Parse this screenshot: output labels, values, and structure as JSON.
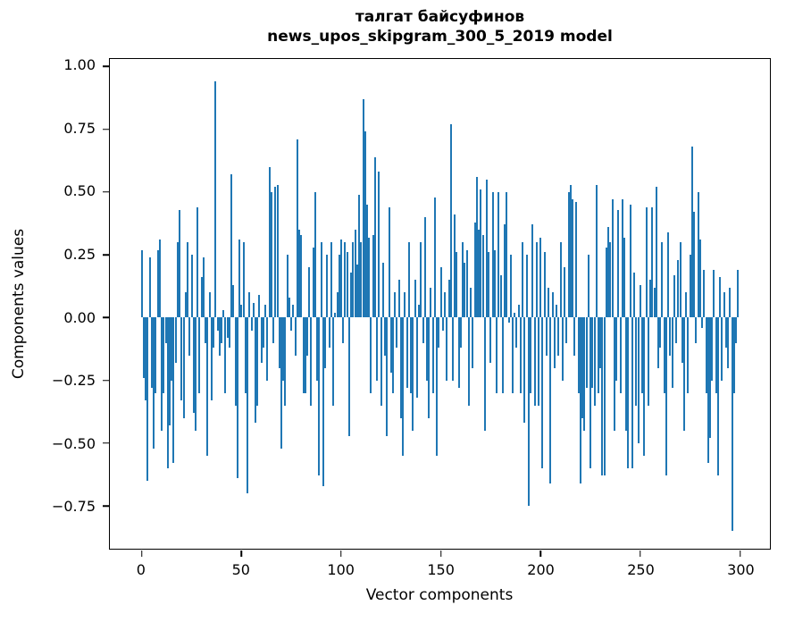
{
  "figure": {
    "title_line1": "талгат байсуфинов",
    "title_line2": "news_upos_skipgram_300_5_2019 model"
  },
  "axes": {
    "xlabel": "Vector components",
    "ylabel": "Components values",
    "x_tick_labels": [
      "0",
      "50",
      "100",
      "150",
      "200",
      "250",
      "300"
    ],
    "y_tick_labels": [
      "1.00",
      "0.75",
      "0.50",
      "0.25",
      "0.00",
      "−0.25",
      "−0.50",
      "−0.75"
    ]
  },
  "chart_data": {
    "type": "bar",
    "title": "талгат байсуфинов\nnews_upos_skipgram_300_5_2019 model",
    "xlabel": "Vector components",
    "ylabel": "Components values",
    "bar_color": "#1f77b4",
    "n_components": 300,
    "xlim": [
      -16,
      315
    ],
    "ylim": [
      -0.92,
      1.03
    ],
    "x_ticks": [
      0,
      50,
      100,
      150,
      200,
      250,
      300
    ],
    "y_ticks": [
      1.0,
      0.75,
      0.5,
      0.25,
      0.0,
      -0.25,
      -0.5,
      -0.75
    ],
    "values": [
      0.27,
      -0.24,
      -0.33,
      -0.65,
      0.24,
      -0.28,
      -0.52,
      -0.3,
      0.27,
      0.31,
      -0.45,
      -0.3,
      -0.1,
      -0.6,
      -0.43,
      -0.25,
      -0.58,
      -0.18,
      0.3,
      0.43,
      -0.33,
      -0.4,
      0.1,
      0.3,
      -0.15,
      0.25,
      -0.38,
      -0.45,
      0.44,
      -0.3,
      0.16,
      0.24,
      -0.1,
      -0.55,
      0.1,
      -0.33,
      -0.12,
      0.94,
      -0.05,
      -0.15,
      -0.1,
      0.03,
      -0.3,
      -0.08,
      -0.12,
      0.57,
      0.13,
      -0.35,
      -0.64,
      0.31,
      0.05,
      0.3,
      -0.3,
      -0.7,
      0.1,
      -0.05,
      0.06,
      -0.42,
      -0.35,
      0.09,
      -0.18,
      -0.12,
      0.05,
      -0.25,
      0.6,
      0.5,
      -0.1,
      0.52,
      0.53,
      -0.2,
      -0.52,
      -0.25,
      -0.35,
      0.25,
      0.08,
      -0.05,
      0.05,
      -0.15,
      0.71,
      0.35,
      0.33,
      -0.3,
      -0.3,
      -0.15,
      0.2,
      -0.35,
      0.28,
      0.5,
      -0.25,
      -0.63,
      0.3,
      -0.67,
      -0.2,
      0.25,
      -0.12,
      0.3,
      -0.35,
      0.02,
      0.1,
      0.25,
      0.31,
      -0.1,
      0.3,
      0.26,
      -0.47,
      0.18,
      0.3,
      0.35,
      0.21,
      0.49,
      0.3,
      0.87,
      0.74,
      0.45,
      0.32,
      -0.3,
      0.33,
      0.64,
      -0.25,
      0.58,
      -0.35,
      0.22,
      -0.15,
      -0.47,
      0.44,
      -0.22,
      -0.3,
      0.1,
      -0.12,
      0.15,
      -0.4,
      -0.55,
      0.1,
      -0.28,
      0.3,
      -0.3,
      -0.45,
      0.15,
      -0.32,
      0.05,
      0.3,
      -0.1,
      0.4,
      -0.25,
      -0.4,
      0.12,
      -0.3,
      0.48,
      -0.55,
      -0.12,
      0.2,
      -0.05,
      0.1,
      -0.25,
      0.15,
      0.77,
      -0.25,
      0.41,
      0.26,
      -0.28,
      -0.12,
      0.3,
      0.22,
      0.27,
      -0.35,
      0.12,
      -0.2,
      0.38,
      0.56,
      0.35,
      0.51,
      0.33,
      -0.45,
      0.55,
      0.26,
      -0.18,
      0.5,
      0.27,
      -0.3,
      0.5,
      0.17,
      -0.3,
      0.37,
      0.5,
      -0.02,
      0.25,
      -0.3,
      0.02,
      -0.12,
      0.05,
      -0.3,
      0.3,
      -0.42,
      0.25,
      -0.75,
      -0.3,
      0.37,
      -0.35,
      0.3,
      -0.35,
      0.32,
      -0.6,
      0.26,
      -0.15,
      0.12,
      -0.66,
      0.1,
      -0.2,
      0.05,
      -0.15,
      0.3,
      -0.25,
      0.2,
      -0.1,
      0.5,
      0.53,
      0.47,
      -0.15,
      0.46,
      -0.3,
      -0.66,
      -0.4,
      -0.45,
      -0.28,
      0.25,
      -0.6,
      -0.28,
      -0.35,
      0.53,
      -0.3,
      -0.2,
      -0.63,
      -0.63,
      0.28,
      0.36,
      0.3,
      0.47,
      -0.45,
      -0.25,
      0.43,
      -0.3,
      0.47,
      0.32,
      -0.45,
      -0.6,
      0.45,
      -0.6,
      0.18,
      -0.35,
      -0.5,
      0.13,
      -0.3,
      -0.55,
      0.44,
      -0.35,
      0.15,
      0.44,
      0.12,
      0.52,
      -0.2,
      -0.12,
      0.3,
      -0.3,
      -0.63,
      0.34,
      -0.15,
      -0.28,
      0.17,
      -0.1,
      0.23,
      0.3,
      -0.18,
      -0.45,
      0.1,
      -0.3,
      0.25,
      0.68,
      0.42,
      -0.1,
      0.5,
      0.31,
      -0.04,
      0.19,
      -0.3,
      -0.58,
      -0.48,
      -0.25,
      0.19,
      -0.3,
      -0.63,
      0.16,
      -0.25,
      0.1,
      -0.12,
      -0.2,
      0.12,
      -0.85,
      -0.3,
      -0.1,
      0.19
    ]
  }
}
